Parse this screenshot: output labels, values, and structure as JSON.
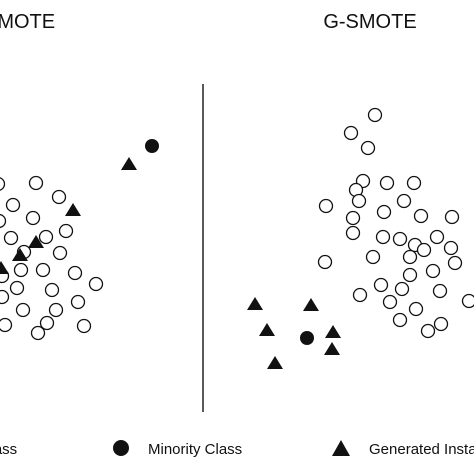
{
  "panels": {
    "left_title": "SMOTE",
    "right_title": "G-SMOTE"
  },
  "legend": {
    "majority_label": "Majority Class",
    "minority_label": "Minority Class",
    "generated_label": "Generated Instances"
  },
  "colors": {
    "ink": "#111111",
    "background": "#ffffff"
  }
}
